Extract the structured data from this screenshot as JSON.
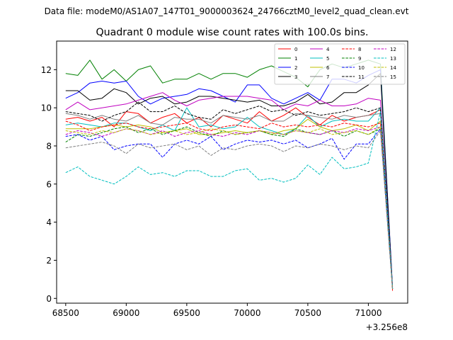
{
  "figure": {
    "suptitle": "Data file: modeM0/AS1A07_147T01_9000003624_24766cztM0_level2_quad_clean.evt"
  },
  "chart_data": {
    "type": "line",
    "title": "Quadrant 0 module wise count rates with 100.0s bins.",
    "xlabel": "",
    "ylabel": "",
    "x_offset_label": "+3.256e8",
    "xlim": [
      68425,
      71325
    ],
    "ylim": [
      -0.25,
      13.5
    ],
    "xticks": [
      68500,
      69000,
      69500,
      70000,
      70500,
      71000
    ],
    "xtick_labels": [
      "68500",
      "69000",
      "69500",
      "70000",
      "70500",
      "71000"
    ],
    "yticks": [
      0,
      2,
      4,
      6,
      8,
      10,
      12
    ],
    "ytick_labels": [
      "0",
      "2",
      "4",
      "6",
      "8",
      "10",
      "12"
    ],
    "grid": false,
    "legend": {
      "location": "upper right",
      "columns": 4
    },
    "x": [
      68500,
      68600,
      68700,
      68800,
      68900,
      69000,
      69100,
      69200,
      69300,
      69400,
      69500,
      69600,
      69700,
      69800,
      69900,
      70000,
      70100,
      70200,
      70300,
      70400,
      70500,
      70600,
      70700,
      70800,
      70900,
      71000,
      71100,
      71200
    ],
    "series": [
      {
        "name": "0",
        "color": "#ff0000",
        "dash": "solid",
        "values": [
          9.4,
          9.5,
          9.3,
          9.5,
          9.0,
          9.8,
          9.7,
          9.2,
          9.5,
          9.7,
          9.2,
          9.5,
          9.0,
          9.6,
          9.4,
          9.2,
          9.8,
          9.3,
          9.6,
          10.0,
          9.5,
          9.1,
          9.6,
          9.3,
          9.5,
          9.6,
          9.9,
          0.4
        ]
      },
      {
        "name": "1",
        "color": "#008000",
        "dash": "solid",
        "values": [
          11.8,
          11.7,
          12.5,
          11.5,
          12.0,
          11.4,
          12.0,
          12.2,
          11.3,
          11.5,
          11.5,
          11.8,
          11.5,
          11.8,
          11.8,
          11.6,
          12.0,
          12.2,
          11.9,
          11.6,
          11.1,
          12.0,
          12.3,
          12.1,
          12.3,
          12.5,
          12.3,
          0.5
        ]
      },
      {
        "name": "2",
        "color": "#0000ff",
        "dash": "solid",
        "values": [
          10.5,
          10.8,
          11.3,
          11.4,
          11.3,
          11.4,
          10.6,
          10.2,
          10.5,
          10.6,
          10.7,
          11.0,
          10.9,
          10.6,
          10.3,
          11.2,
          11.2,
          10.5,
          10.2,
          10.5,
          10.8,
          10.4,
          11.5,
          11.5,
          11.3,
          11.7,
          12.0,
          0.6
        ]
      },
      {
        "name": "3",
        "color": "#000000",
        "dash": "solid",
        "values": [
          10.9,
          10.9,
          10.4,
          10.5,
          11.0,
          10.8,
          10.2,
          10.5,
          10.6,
          10.2,
          10.3,
          10.6,
          10.6,
          10.5,
          10.4,
          10.3,
          10.4,
          10.1,
          10.1,
          10.3,
          10.7,
          10.2,
          10.3,
          10.8,
          10.8,
          11.2,
          11.8,
          0.5
        ]
      },
      {
        "name": "4",
        "color": "#c000c0",
        "dash": "solid",
        "values": [
          9.9,
          10.3,
          9.9,
          10.0,
          10.1,
          10.2,
          10.4,
          10.6,
          10.8,
          10.4,
          10.1,
          10.4,
          10.5,
          10.6,
          10.6,
          10.6,
          10.5,
          10.4,
          9.9,
          10.2,
          10.1,
          10.4,
          10.1,
          10.1,
          10.2,
          10.5,
          10.4,
          0.5
        ]
      },
      {
        "name": "5",
        "color": "#00bfbf",
        "dash": "solid",
        "values": [
          9.1,
          9.2,
          9.1,
          9.0,
          9.2,
          9.2,
          9.0,
          8.8,
          9.1,
          8.8,
          10.0,
          9.0,
          9.1,
          8.9,
          9.0,
          9.5,
          9.0,
          8.8,
          8.6,
          8.9,
          9.6,
          9.0,
          9.3,
          9.4,
          9.3,
          9.3,
          10.0,
          0.5
        ]
      },
      {
        "name": "6",
        "color": "#bfbf00",
        "dash": "solid",
        "values": [
          8.9,
          8.9,
          8.9,
          9.0,
          9.1,
          9.0,
          9.1,
          9.0,
          8.7,
          8.8,
          8.9,
          8.6,
          8.6,
          8.7,
          8.8,
          8.7,
          8.8,
          8.6,
          8.8,
          8.9,
          9.4,
          9.0,
          8.8,
          8.9,
          9.1,
          8.8,
          9.3,
          0.5
        ]
      },
      {
        "name": "7",
        "color": "#808080",
        "dash": "solid",
        "values": [
          9.7,
          9.6,
          9.4,
          9.6,
          9.4,
          9.3,
          9.6,
          9.2,
          9.1,
          9.5,
          9.4,
          9.4,
          9.2,
          9.6,
          9.5,
          9.4,
          9.6,
          9.3,
          9.3,
          9.7,
          9.6,
          9.5,
          9.4,
          9.6,
          9.5,
          9.6,
          9.7,
          0.5
        ]
      },
      {
        "name": "8",
        "color": "#ff0000",
        "dash": "dashed",
        "values": [
          9.3,
          9.1,
          8.8,
          9.0,
          9.1,
          9.2,
          9.0,
          8.9,
          9.0,
          9.1,
          9.2,
          8.9,
          8.8,
          9.0,
          9.1,
          9.0,
          8.9,
          9.2,
          9.0,
          9.1,
          9.0,
          9.1,
          9.0,
          9.2,
          9.1,
          9.0,
          9.2,
          0.5
        ]
      },
      {
        "name": "9",
        "color": "#008000",
        "dash": "dashed",
        "values": [
          8.2,
          8.6,
          8.5,
          8.7,
          8.9,
          9.0,
          8.7,
          8.9,
          8.6,
          8.8,
          9.0,
          8.7,
          8.5,
          8.8,
          8.6,
          8.7,
          8.8,
          8.6,
          8.5,
          8.9,
          8.7,
          8.6,
          8.8,
          8.5,
          8.8,
          8.6,
          8.9,
          0.5
        ]
      },
      {
        "name": "10",
        "color": "#0000ff",
        "dash": "dashed",
        "values": [
          8.5,
          8.6,
          8.3,
          8.5,
          7.8,
          8.0,
          8.1,
          8.1,
          7.4,
          8.1,
          8.3,
          8.1,
          8.5,
          7.8,
          8.1,
          8.3,
          8.2,
          8.3,
          8.1,
          8.3,
          7.9,
          8.1,
          8.4,
          7.3,
          8.1,
          8.1,
          8.9,
          0.5
        ]
      },
      {
        "name": "11",
        "color": "#000000",
        "dash": "dashed",
        "values": [
          9.8,
          9.7,
          9.6,
          9.3,
          9.6,
          9.8,
          10.3,
          9.8,
          9.8,
          10.1,
          9.7,
          9.5,
          9.4,
          9.9,
          9.7,
          9.9,
          10.1,
          9.8,
          9.9,
          9.6,
          9.8,
          9.6,
          9.7,
          9.8,
          10.0,
          9.8,
          10.0,
          0.5
        ]
      },
      {
        "name": "12",
        "color": "#c000c0",
        "dash": "dashed",
        "values": [
          8.6,
          8.8,
          8.7,
          8.5,
          8.7,
          8.9,
          8.8,
          8.6,
          8.8,
          8.5,
          8.7,
          8.8,
          8.6,
          8.5,
          8.7,
          8.6,
          8.8,
          8.7,
          8.6,
          8.8,
          8.7,
          8.6,
          8.8,
          8.7,
          8.9,
          8.8,
          9.0,
          0.5
        ]
      },
      {
        "name": "13",
        "color": "#00bfbf",
        "dash": "dashed",
        "values": [
          6.6,
          6.9,
          6.4,
          6.2,
          6.0,
          6.4,
          6.9,
          6.5,
          6.6,
          6.4,
          6.7,
          6.7,
          6.4,
          6.4,
          6.7,
          6.8,
          6.2,
          6.3,
          6.1,
          6.3,
          7.0,
          6.5,
          7.4,
          6.8,
          6.9,
          7.1,
          9.8,
          0.5
        ]
      },
      {
        "name": "14",
        "color": "#bfbf00",
        "dash": "dashed",
        "values": [
          8.8,
          8.7,
          8.6,
          8.8,
          8.7,
          8.9,
          8.8,
          8.6,
          8.7,
          8.8,
          8.6,
          8.7,
          8.9,
          8.8,
          8.6,
          8.7,
          8.8,
          8.7,
          8.6,
          8.8,
          8.7,
          8.9,
          8.6,
          8.7,
          8.8,
          8.6,
          9.0,
          0.5
        ]
      },
      {
        "name": "15",
        "color": "#808080",
        "dash": "dashed",
        "values": [
          7.9,
          8.0,
          8.1,
          8.2,
          8.0,
          7.6,
          8.1,
          7.9,
          8.0,
          8.1,
          7.8,
          8.0,
          7.5,
          7.9,
          7.8,
          8.0,
          8.1,
          8.0,
          7.7,
          8.0,
          7.9,
          8.1,
          8.0,
          7.8,
          8.0,
          7.9,
          8.8,
          0.5
        ]
      }
    ]
  }
}
